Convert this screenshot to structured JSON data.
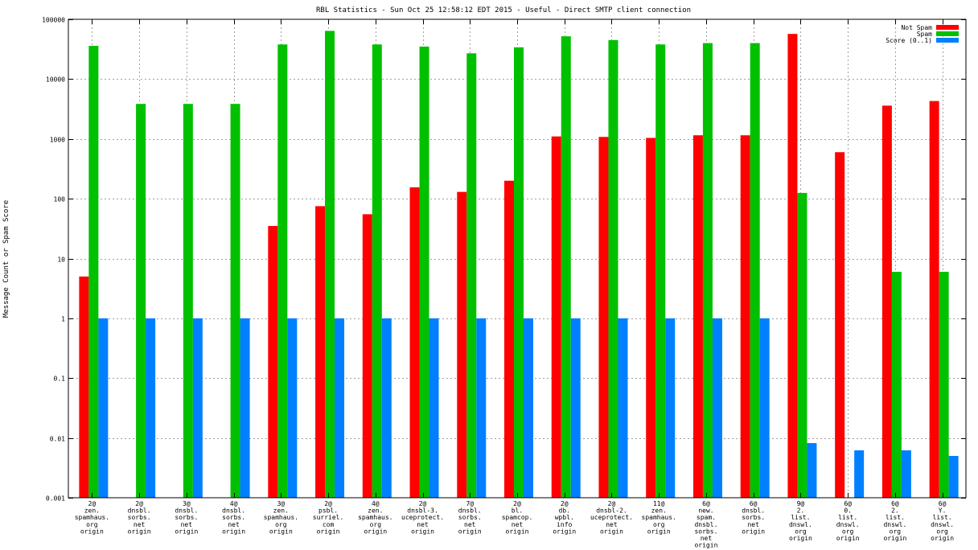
{
  "chart_data": {
    "type": "bar",
    "title": "RBL Statistics - Sun Oct 25 12:58:12 EDT 2015 - Useful - Direct SMTP client connection",
    "ylabel": "Message Count or Spam Score",
    "yscale": "log",
    "ylim": [
      0.001,
      100000
    ],
    "y_ticks": [
      "0.001",
      "0.01",
      "0.1",
      "1",
      "10",
      "100",
      "1000",
      "10000",
      "100000"
    ],
    "grid": true,
    "legend_position": "top-right",
    "categories": [
      [
        "2@",
        "zen.",
        "spamhaus.",
        "org",
        "origin"
      ],
      [
        "2@",
        "dnsbl.",
        "sorbs.",
        "net",
        "origin"
      ],
      [
        "3@",
        "dnsbl.",
        "sorbs.",
        "net",
        "origin"
      ],
      [
        "4@",
        "dnsbl.",
        "sorbs.",
        "net",
        "origin"
      ],
      [
        "3@",
        "zen.",
        "spamhaus.",
        "org",
        "origin"
      ],
      [
        "2@",
        "psbl.",
        "surriel.",
        "com",
        "origin"
      ],
      [
        "4@",
        "zen.",
        "spamhaus.",
        "org",
        "origin"
      ],
      [
        "2@",
        "dnsbl-3.",
        "uceprotect.",
        "net",
        "origin"
      ],
      [
        "7@",
        "dnsbl.",
        "sorbs.",
        "net",
        "origin"
      ],
      [
        "2@",
        "bl.",
        "spamcop.",
        "net",
        "origin"
      ],
      [
        "2@",
        "db.",
        "wpbl.",
        "info",
        "origin"
      ],
      [
        "2@",
        "dnsbl-2.",
        "uceprotect.",
        "net",
        "origin"
      ],
      [
        "11@",
        "zen.",
        "spamhaus.",
        "org",
        "origin"
      ],
      [
        "6@",
        "new.",
        "spam.",
        "dnsbl.",
        "sorbs.",
        "net",
        "origin"
      ],
      [
        "6@",
        "dnsbl.",
        "sorbs.",
        "net",
        "origin"
      ],
      [
        "9@",
        "2.",
        "list.",
        "dnswl.",
        "org",
        "origin"
      ],
      [
        "6@",
        "0.",
        "list.",
        "dnswl.",
        "org",
        "origin"
      ],
      [
        "6@",
        "2.",
        "list.",
        "dnswl.",
        "org",
        "origin"
      ],
      [
        "6@",
        "Y.",
        "list.",
        "dnswl.",
        "org",
        "origin"
      ]
    ],
    "series": [
      {
        "name": "Not Spam",
        "color": "#ff0000",
        "values": [
          5,
          null,
          null,
          null,
          35,
          75,
          55,
          155,
          130,
          200,
          1100,
          1080,
          1040,
          1150,
          1150,
          57000,
          600,
          3600,
          4300
        ]
      },
      {
        "name": "Spam",
        "color": "#00c000",
        "values": [
          36000,
          3850,
          3850,
          3850,
          38000,
          64000,
          38000,
          35000,
          27000,
          34000,
          52000,
          45000,
          38000,
          40000,
          40000,
          125,
          null,
          6,
          6
        ]
      },
      {
        "name": "Score (0..1)",
        "color": "#0080ff",
        "values": [
          1,
          1,
          1,
          1,
          1,
          1,
          1,
          1,
          1,
          1,
          1,
          1,
          1,
          1,
          1,
          0.0082,
          0.0062,
          0.0062,
          0.005
        ]
      }
    ]
  }
}
